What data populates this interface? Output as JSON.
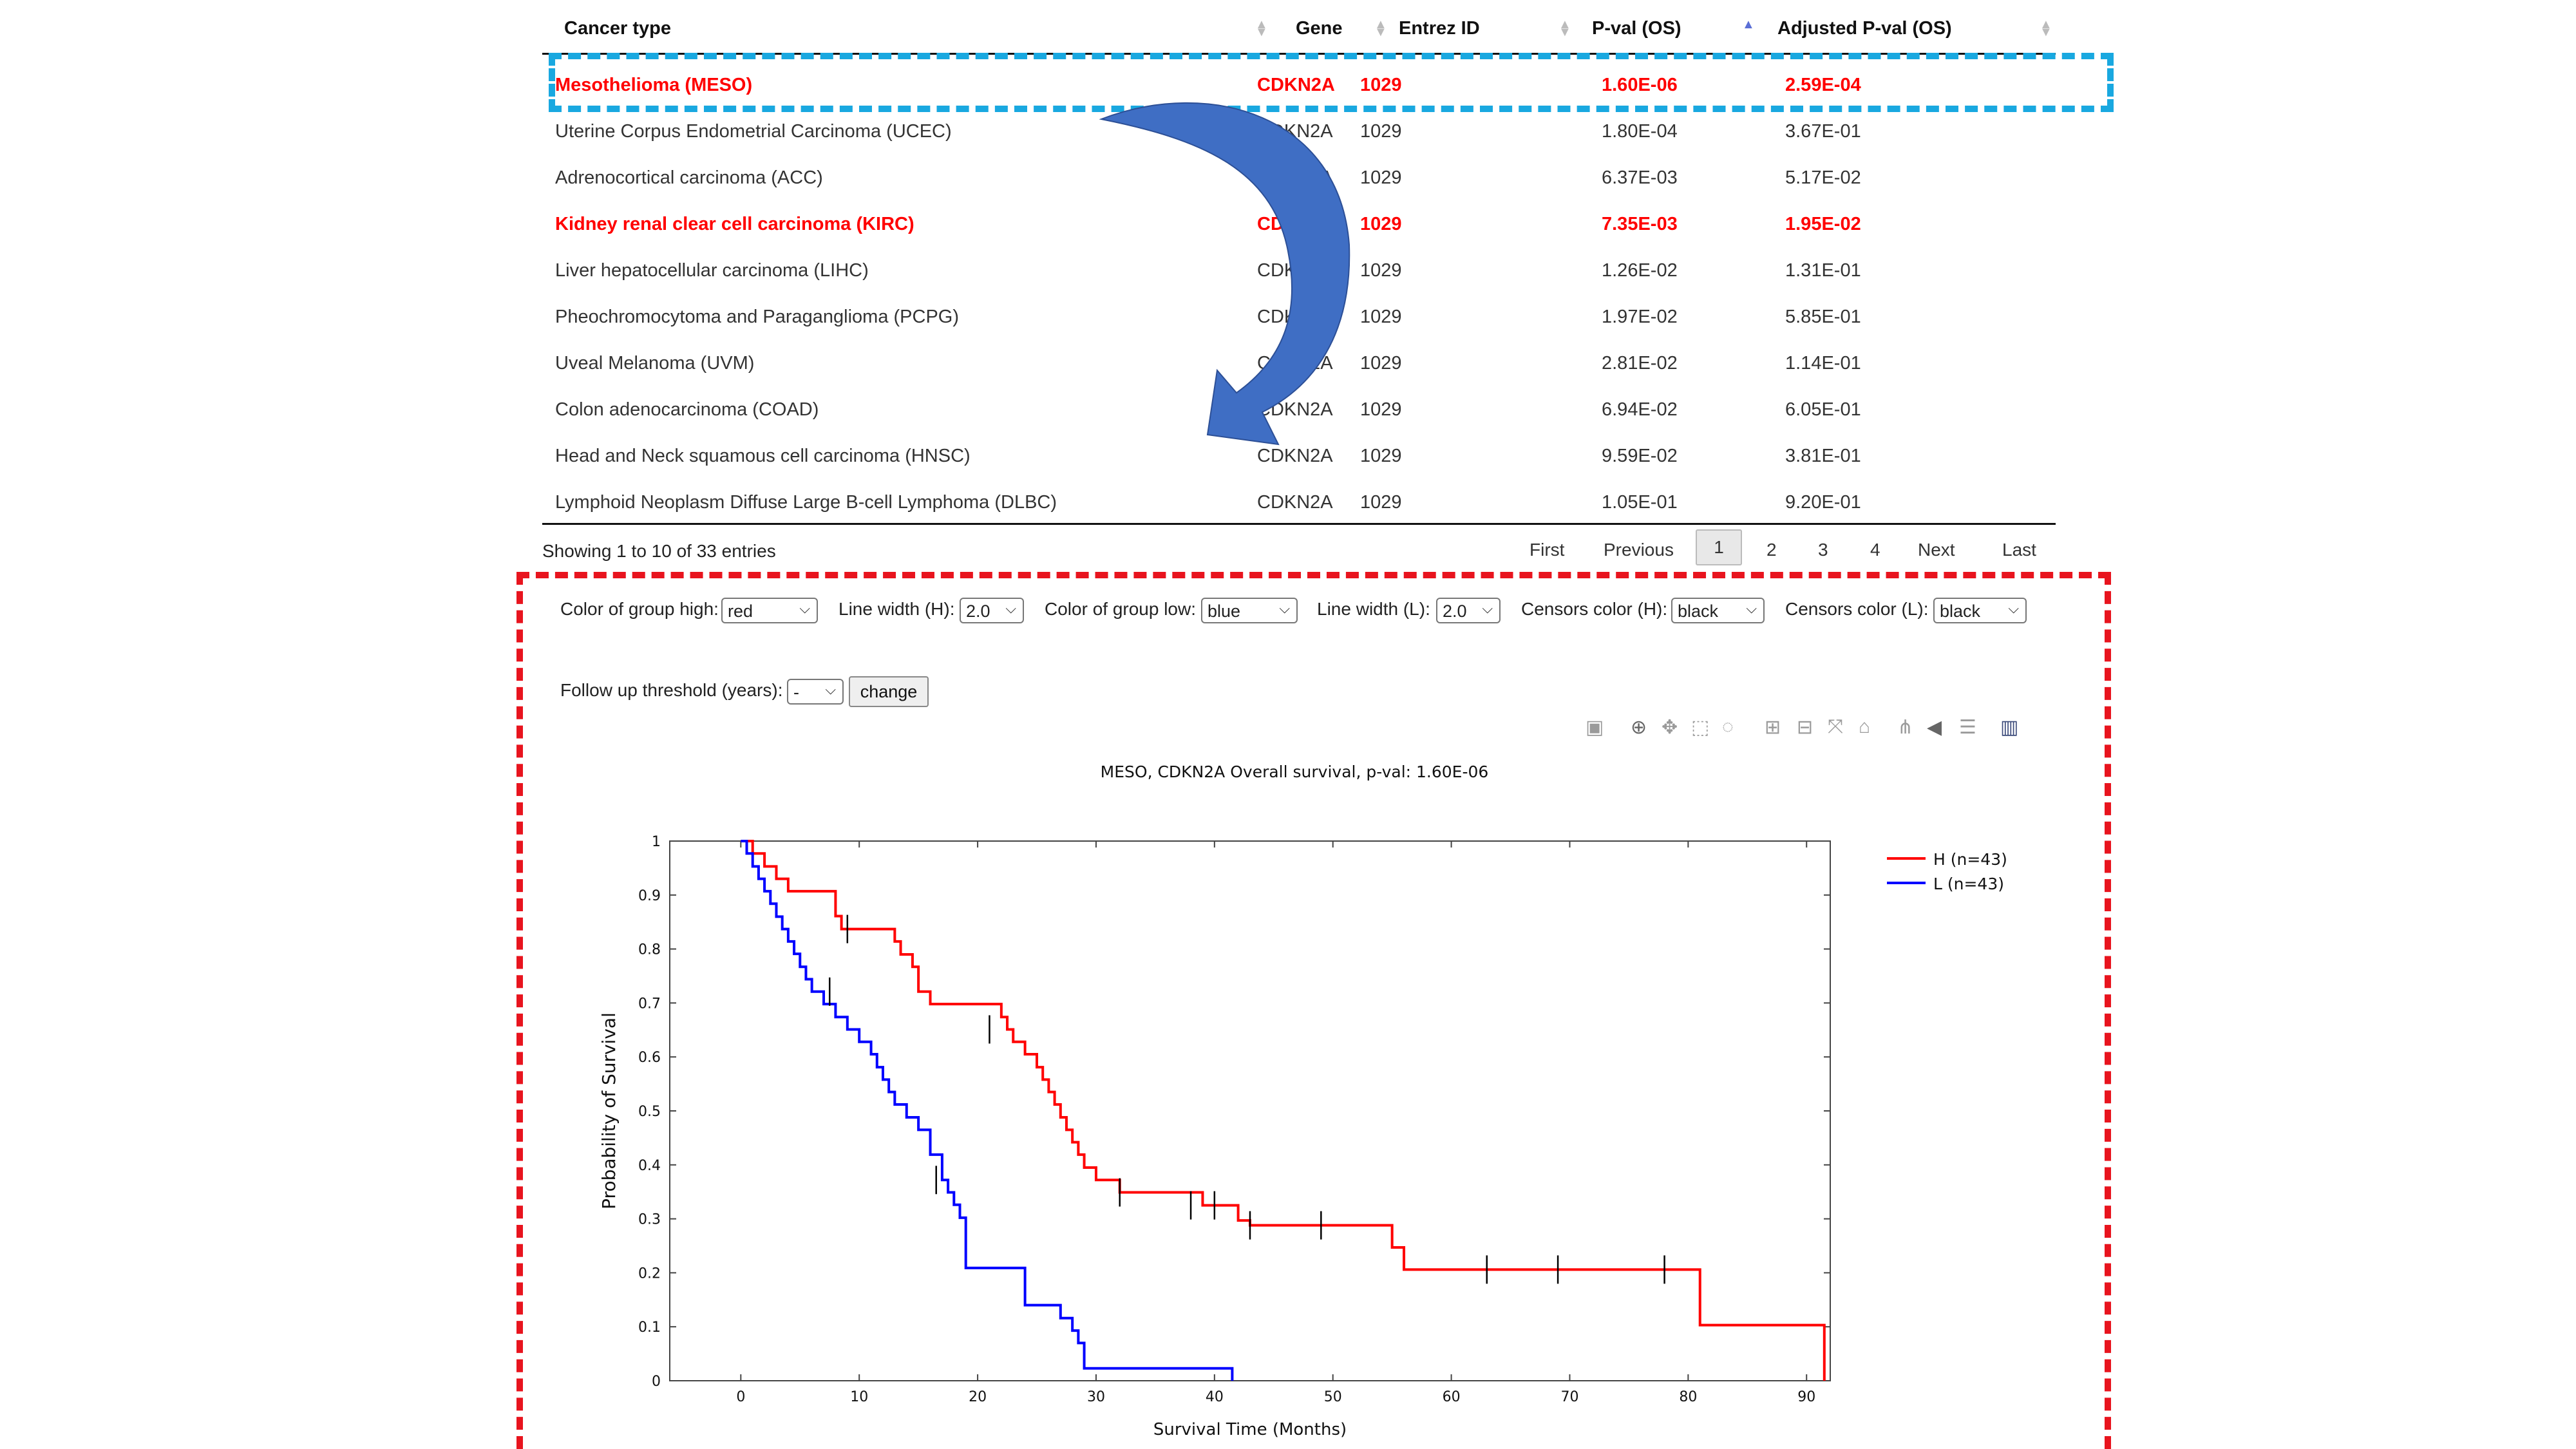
{
  "table": {
    "headers": [
      "Cancer type",
      "Gene",
      "Entrez ID",
      "P-val (OS)",
      "Adjusted P-val (OS)"
    ],
    "rows": [
      {
        "cancer": "Mesothelioma (MESO)",
        "gene": "CDKN2A",
        "entrez": "1029",
        "pval": "1.60E-06",
        "adj": "2.59E-04",
        "highlight": true
      },
      {
        "cancer": "Uterine Corpus Endometrial Carcinoma (UCEC)",
        "gene": "CDKN2A",
        "entrez": "1029",
        "pval": "1.80E-04",
        "adj": "3.67E-01",
        "highlight": false
      },
      {
        "cancer": "Adrenocortical carcinoma (ACC)",
        "gene": "CDKN2A",
        "entrez": "1029",
        "pval": "6.37E-03",
        "adj": "5.17E-02",
        "highlight": false
      },
      {
        "cancer": "Kidney renal clear cell carcinoma (KIRC)",
        "gene": "CDKN2A",
        "entrez": "1029",
        "pval": "7.35E-03",
        "adj": "1.95E-02",
        "highlight": true
      },
      {
        "cancer": "Liver hepatocellular carcinoma (LIHC)",
        "gene": "CDKN2A",
        "entrez": "1029",
        "pval": "1.26E-02",
        "adj": "1.31E-01",
        "highlight": false
      },
      {
        "cancer": "Pheochromocytoma and Paraganglioma (PCPG)",
        "gene": "CDKN2A",
        "entrez": "1029",
        "pval": "1.97E-02",
        "adj": "5.85E-01",
        "highlight": false
      },
      {
        "cancer": "Uveal Melanoma (UVM)",
        "gene": "CDKN2A",
        "entrez": "1029",
        "pval": "2.81E-02",
        "adj": "1.14E-01",
        "highlight": false
      },
      {
        "cancer": "Colon adenocarcinoma (COAD)",
        "gene": "CDKN2A",
        "entrez": "1029",
        "pval": "6.94E-02",
        "adj": "6.05E-01",
        "highlight": false
      },
      {
        "cancer": "Head and Neck squamous cell carcinoma (HNSC)",
        "gene": "CDKN2A",
        "entrez": "1029",
        "pval": "9.59E-02",
        "adj": "3.81E-01",
        "highlight": false
      },
      {
        "cancer": "Lymphoid Neoplasm Diffuse Large B-cell Lymphoma (DLBC)",
        "gene": "CDKN2A",
        "entrez": "1029",
        "pval": "1.05E-01",
        "adj": "9.20E-01",
        "highlight": false
      }
    ]
  },
  "info": "Showing 1 to 10 of 33 entries",
  "pagination": {
    "first": "First",
    "previous": "Previous",
    "pages": [
      "1",
      "2",
      "3",
      "4"
    ],
    "next": "Next",
    "last": "Last",
    "current": "1"
  },
  "controls": {
    "color_high_label": "Color of group high:",
    "color_high": "red",
    "lw_high_label": "Line width (H):",
    "lw_high": "2.0",
    "color_low_label": "Color of group low:",
    "color_low": "blue",
    "lw_low_label": "Line width (L):",
    "lw_low": "2.0",
    "censor_h_label": "Censors color (H):",
    "censor_h": "black",
    "censor_l_label": "Censors color (L):",
    "censor_l": "black",
    "followup_label": "Follow up threshold (years):",
    "followup": "-",
    "change_label": "change"
  },
  "toolbar": [
    "camera-icon",
    "zoom-icon",
    "pan-icon",
    "box-select-icon",
    "lasso-icon",
    "zoom-in-icon",
    "zoom-out-icon",
    "autoscale-icon",
    "home-icon",
    "spike-lines-icon",
    "hover-closest-icon",
    "hover-compare-icon",
    "plotly-logo-icon"
  ],
  "colors": {
    "highlight": "#ff0000",
    "meso_frame": "#19a8e0",
    "plot_frame": "#e8141e",
    "arrow": "#3f6ec4",
    "high": "#ff0000",
    "low": "#0000ff"
  },
  "chart_data": {
    "type": "line",
    "title": "MESO, CDKN2A Overall survival, p-val: 1.60E-06",
    "xlabel": "Survival Time (Months)",
    "ylabel": "Probability of Survival",
    "xlim": [
      -6,
      92
    ],
    "ylim": [
      0,
      1
    ],
    "xticks": [
      0,
      10,
      20,
      30,
      40,
      50,
      60,
      70,
      80,
      90
    ],
    "yticks": [
      0,
      0.1,
      0.2,
      0.3,
      0.4,
      0.5,
      0.6,
      0.7,
      0.8,
      0.9,
      1
    ],
    "legend_position": "top-right",
    "series": [
      {
        "name": "H (n=43)",
        "color": "#ff0000",
        "x": [
          0,
          1,
          2,
          3,
          4,
          5,
          8,
          8.5,
          13,
          13.5,
          14.5,
          15,
          16,
          22,
          22.5,
          23,
          24,
          25,
          25.5,
          26,
          26.5,
          27,
          27.5,
          28,
          28.5,
          29,
          30,
          31,
          32,
          33,
          39,
          42,
          43,
          55,
          56,
          81,
          91.5
        ],
        "y": [
          1,
          0.977,
          0.953,
          0.93,
          0.907,
          0.907,
          0.861,
          0.837,
          0.814,
          0.79,
          0.767,
          0.721,
          0.698,
          0.674,
          0.651,
          0.628,
          0.605,
          0.581,
          0.558,
          0.535,
          0.512,
          0.488,
          0.465,
          0.442,
          0.419,
          0.395,
          0.372,
          0.372,
          0.349,
          0.349,
          0.325,
          0.297,
          0.288,
          0.247,
          0.206,
          0.103,
          0
        ]
      },
      {
        "name": "L (n=43)",
        "color": "#0000ff",
        "x": [
          0,
          0.5,
          1,
          1.5,
          2,
          2.5,
          3,
          3.5,
          4,
          4.5,
          5,
          5.5,
          6,
          6.5,
          7,
          8,
          9,
          10,
          11,
          11.5,
          12,
          12.5,
          13,
          14,
          15,
          16,
          17,
          17.5,
          18,
          18.5,
          19,
          24,
          27,
          28,
          28.5,
          29,
          41.5
        ],
        "y": [
          1,
          0.977,
          0.953,
          0.93,
          0.907,
          0.884,
          0.86,
          0.837,
          0.814,
          0.791,
          0.767,
          0.744,
          0.721,
          0.721,
          0.698,
          0.674,
          0.651,
          0.628,
          0.605,
          0.581,
          0.558,
          0.535,
          0.512,
          0.488,
          0.465,
          0.419,
          0.372,
          0.349,
          0.326,
          0.302,
          0.209,
          0.14,
          0.116,
          0.093,
          0.07,
          0.023,
          0
        ]
      }
    ],
    "censors": {
      "H": {
        "x": [
          9,
          21,
          32,
          38,
          40,
          43,
          49,
          63,
          69,
          78
        ],
        "y": [
          0.837,
          0.651,
          0.349,
          0.325,
          0.325,
          0.288,
          0.288,
          0.206,
          0.206,
          0.206
        ]
      },
      "L": {
        "x": [
          7.5,
          16.5
        ],
        "y": [
          0.721,
          0.372
        ]
      }
    }
  }
}
